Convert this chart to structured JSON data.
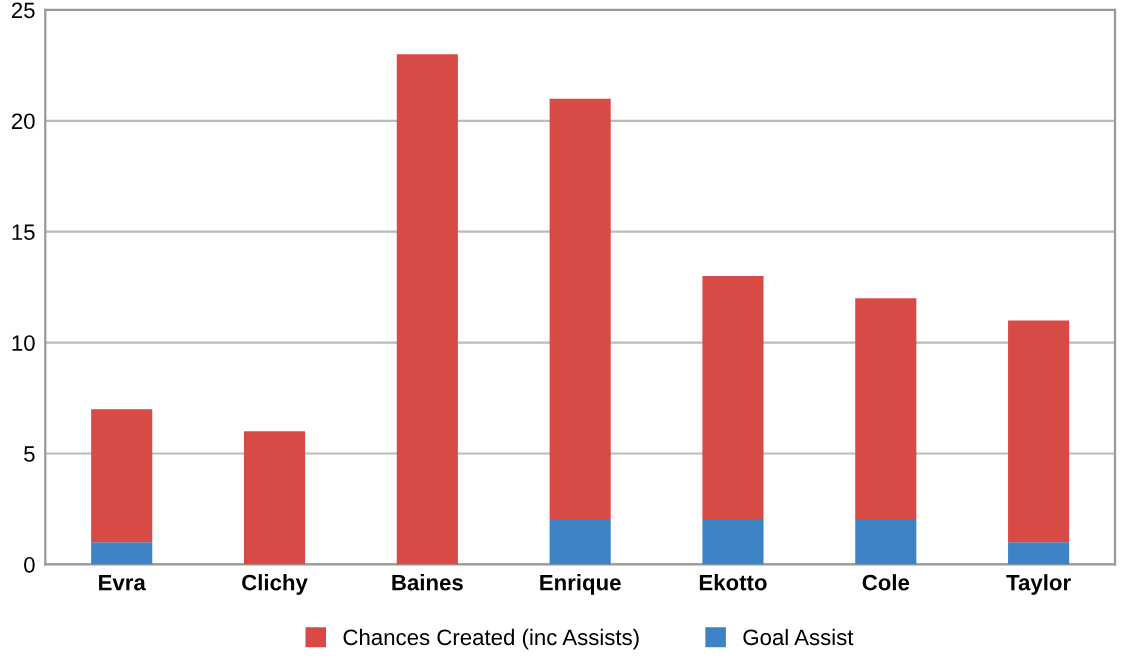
{
  "chart_data": {
    "type": "bar",
    "stacked": true,
    "categories": [
      "Evra",
      "Clichy",
      "Baines",
      "Enrique",
      "Ekotto",
      "Cole",
      "Taylor"
    ],
    "series": [
      {
        "name": "Goal Assist",
        "color": "#3d83c6",
        "values": [
          1,
          0,
          0,
          2,
          2,
          2,
          1
        ]
      },
      {
        "name": "Chances Created (inc Assists)",
        "color": "#d84a46",
        "values": [
          6,
          6,
          23,
          19,
          11,
          10,
          10
        ]
      }
    ],
    "ylim": [
      0,
      25
    ],
    "yticks": [
      0,
      5,
      10,
      15,
      20,
      25
    ],
    "grid": "y",
    "legend": "bottom"
  }
}
